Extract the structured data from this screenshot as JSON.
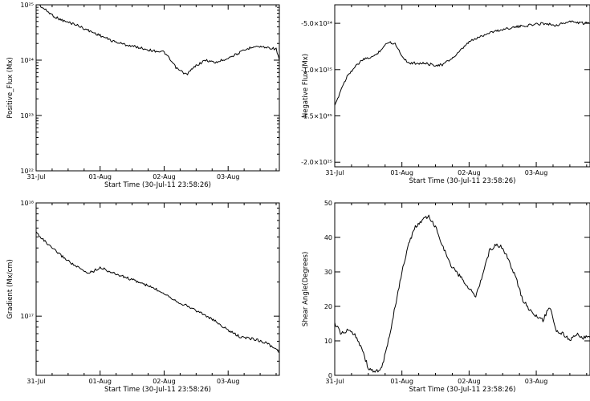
{
  "chart_data": [
    {
      "type": "line",
      "xlabel": "Start Time (30-Jul-11 23:58:26)",
      "ylabel": "Positive_Flux (Mx)",
      "yscale": "log",
      "ylim": [
        1e+22,
        1e+25
      ],
      "xlim": [
        0,
        3.8
      ],
      "x_ticks": [
        {
          "value": 0.0,
          "label": "31-Jul"
        },
        {
          "value": 1.0,
          "label": "01-Aug"
        },
        {
          "value": 2.0,
          "label": "02-Aug"
        },
        {
          "value": 3.0,
          "label": "03-Aug"
        }
      ],
      "y_ticks": [
        {
          "value": 1e+22,
          "label": "10²²"
        },
        {
          "value": 1e+23,
          "label": "10²³"
        },
        {
          "value": 1e+24,
          "label": "10²⁴"
        },
        {
          "value": 1e+25,
          "label": "10²⁵"
        }
      ],
      "series": [
        {
          "x": [
            0.0,
            0.15,
            0.3,
            0.45,
            0.6,
            0.8,
            1.0,
            1.2,
            1.4,
            1.6,
            1.8,
            2.0,
            2.2,
            2.35,
            2.5,
            2.65,
            2.8,
            3.0,
            3.2,
            3.4,
            3.6,
            3.75,
            3.8
          ],
          "y": [
            1.1e+25,
            8e+24,
            6e+24,
            5e+24,
            4.5e+24,
            3.5e+24,
            2.8e+24,
            2.2e+24,
            1.9e+24,
            1.7e+24,
            1.5e+24,
            1.4e+24,
            7e+23,
            5.5e+23,
            8e+23,
            1e+24,
            9e+23,
            1.1e+24,
            1.4e+24,
            1.8e+24,
            1.7e+24,
            1.6e+24,
            1e+24
          ]
        }
      ]
    },
    {
      "type": "line",
      "xlabel": "Start Time (30-Jul-11 23:58:26)",
      "ylabel": "Negative Flux (Mx)",
      "ylim": [
        -2.05e+25,
        -3e+24
      ],
      "xlim": [
        0,
        3.8
      ],
      "x_ticks": [
        {
          "value": 0.0,
          "label": "31-Jul"
        },
        {
          "value": 1.0,
          "label": "01-Aug"
        },
        {
          "value": 2.0,
          "label": "02-Aug"
        },
        {
          "value": 3.0,
          "label": "03-Aug"
        }
      ],
      "y_ticks": [
        {
          "value": -5e+24,
          "label": "-5.0×10²⁴"
        },
        {
          "value": -1e+25,
          "label": "-1.0×10²⁵"
        },
        {
          "value": -1.5e+25,
          "label": "-1.5×10²⁵"
        },
        {
          "value": -2e+25,
          "label": "-2.0×10²⁵"
        }
      ],
      "series": [
        {
          "x": [
            0.0,
            0.1,
            0.2,
            0.4,
            0.6,
            0.8,
            0.9,
            1.0,
            1.1,
            1.3,
            1.5,
            1.6,
            1.8,
            2.0,
            2.3,
            2.6,
            2.9,
            3.1,
            3.3,
            3.5,
            3.7,
            3.8
          ],
          "y": [
            -1.4e+25,
            -1.2e+25,
            -1.05e+25,
            -9e+24,
            -8.5e+24,
            -7e+24,
            -7.2e+24,
            -8.5e+24,
            -9.3e+24,
            -9.3e+24,
            -9.5e+24,
            -9.5e+24,
            -8.5e+24,
            -7e+24,
            -6e+24,
            -5.5e+24,
            -5.2e+24,
            -5e+24,
            -5.2e+24,
            -4.8e+24,
            -5e+24,
            -5e+24
          ]
        }
      ]
    },
    {
      "type": "line",
      "xlabel": "Start Time (30-Jul-11 23:58:26)",
      "ylabel": "Gradient (Mx/cm)",
      "yscale": "log",
      "ylim": [
        3e+16,
        1e+18
      ],
      "xlim": [
        0,
        3.8
      ],
      "x_ticks": [
        {
          "value": 0.0,
          "label": "31-Jul"
        },
        {
          "value": 1.0,
          "label": "01-Aug"
        },
        {
          "value": 2.0,
          "label": "02-Aug"
        },
        {
          "value": 3.0,
          "label": "03-Aug"
        }
      ],
      "y_ticks": [
        {
          "value": 1e+17,
          "label": "10¹⁷"
        },
        {
          "value": 1e+18,
          "label": "10¹⁸"
        }
      ],
      "series": [
        {
          "x": [
            0.0,
            0.2,
            0.4,
            0.6,
            0.8,
            0.9,
            1.0,
            1.2,
            1.4,
            1.6,
            1.8,
            2.0,
            2.2,
            2.4,
            2.6,
            2.8,
            3.0,
            3.2,
            3.4,
            3.6,
            3.8
          ],
          "y": [
            5.5e+17,
            4.2e+17,
            3.4e+17,
            2.8e+17,
            2.4e+17,
            2.5e+17,
            2.7e+17,
            2.4e+17,
            2.2e+17,
            2e+17,
            1.8e+17,
            1.6e+17,
            1.35e+17,
            1.2e+17,
            1.05e+17,
            9e+16,
            7.5e+16,
            6.5e+16,
            6.3e+16,
            5.8e+16,
            4.8e+16
          ]
        }
      ]
    },
    {
      "type": "line",
      "xlabel": "Start Time (30-Jul-11 23:58:26)",
      "ylabel": "Shear Angle(Degrees)",
      "ylim": [
        0,
        50
      ],
      "xlim": [
        0,
        3.8
      ],
      "x_ticks": [
        {
          "value": 0.0,
          "label": "31-Jul"
        },
        {
          "value": 1.0,
          "label": "01-Aug"
        },
        {
          "value": 2.0,
          "label": "02-Aug"
        },
        {
          "value": 3.0,
          "label": "03-Aug"
        }
      ],
      "y_ticks": [
        {
          "value": 0,
          "label": "0"
        },
        {
          "value": 10,
          "label": "10"
        },
        {
          "value": 20,
          "label": "20"
        },
        {
          "value": 30,
          "label": "30"
        },
        {
          "value": 40,
          "label": "40"
        },
        {
          "value": 50,
          "label": "50"
        }
      ],
      "series": [
        {
          "x": [
            0.0,
            0.1,
            0.2,
            0.3,
            0.4,
            0.5,
            0.6,
            0.7,
            0.8,
            0.9,
            1.0,
            1.1,
            1.2,
            1.3,
            1.4,
            1.5,
            1.6,
            1.7,
            1.8,
            1.9,
            2.0,
            2.1,
            2.2,
            2.3,
            2.4,
            2.5,
            2.6,
            2.7,
            2.8,
            2.9,
            3.0,
            3.1,
            3.2,
            3.3,
            3.4,
            3.5,
            3.6,
            3.7,
            3.8
          ],
          "y": [
            15,
            12,
            13,
            12,
            8,
            2,
            1,
            2,
            10,
            20,
            30,
            38,
            43,
            45,
            46,
            43,
            38,
            33,
            30,
            28,
            25,
            23,
            29,
            36,
            38,
            37,
            33,
            28,
            22,
            19,
            17,
            16,
            20,
            13,
            12,
            10,
            12,
            11,
            11
          ]
        }
      ]
    }
  ]
}
